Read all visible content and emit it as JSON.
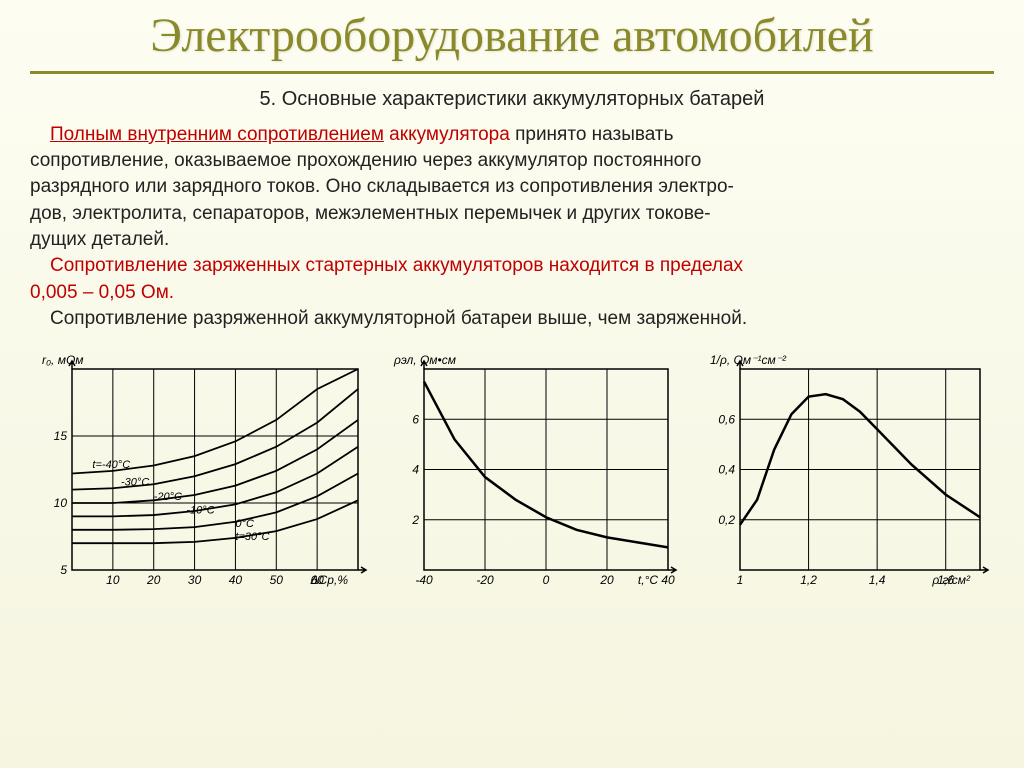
{
  "title": "Электрооборудование автомобилей",
  "subtitle": "5. Основные характеристики аккумуляторных батарей",
  "text": {
    "term": "Полным внутренним сопротивлением",
    "term_tail": " аккумулятора",
    "l1b": " принято называть",
    "l2": " сопротивление, оказываемое прохождению через аккумулятор постоянного",
    "l3": "разрядного или зарядного токов. Оно складывается из сопротивления электро-",
    "l4": "дов, электролита, сепараторов, межэлементных перемычек и других токове-",
    "l5": "дущих деталей.",
    "r1a": "Сопротивление заряженных стартерных аккумуляторов находится в пределах",
    "r1b": "0,005 – 0,05 Ом.",
    "l6": "Сопротивление разряженной аккумуляторной батареи выше, чем заряженной."
  },
  "chart1": {
    "type": "line",
    "ylabel": "r₀, мОм",
    "xlabel": "ΔCр,%",
    "xlim": [
      0,
      70
    ],
    "ylim": [
      5,
      20
    ],
    "yticks": [
      5,
      10,
      15
    ],
    "xticks": [
      10,
      20,
      30,
      40,
      50,
      60
    ],
    "series_labels": [
      "t=-40°C",
      "-30°C",
      "-20°C",
      "-10°C",
      "0°C",
      "t=30°C"
    ],
    "series": [
      [
        [
          0,
          12.2
        ],
        [
          10,
          12.4
        ],
        [
          20,
          12.8
        ],
        [
          30,
          13.5
        ],
        [
          40,
          14.6
        ],
        [
          50,
          16.2
        ],
        [
          60,
          18.5
        ],
        [
          70,
          20
        ]
      ],
      [
        [
          0,
          11.0
        ],
        [
          10,
          11.1
        ],
        [
          20,
          11.4
        ],
        [
          30,
          12.0
        ],
        [
          40,
          12.9
        ],
        [
          50,
          14.2
        ],
        [
          60,
          16.0
        ],
        [
          70,
          18.5
        ]
      ],
      [
        [
          0,
          10.0
        ],
        [
          10,
          10.0
        ],
        [
          20,
          10.2
        ],
        [
          30,
          10.6
        ],
        [
          40,
          11.3
        ],
        [
          50,
          12.4
        ],
        [
          60,
          14.0
        ],
        [
          70,
          16.2
        ]
      ],
      [
        [
          0,
          9.0
        ],
        [
          10,
          9.0
        ],
        [
          20,
          9.1
        ],
        [
          30,
          9.4
        ],
        [
          40,
          9.9
        ],
        [
          50,
          10.8
        ],
        [
          60,
          12.2
        ],
        [
          70,
          14.2
        ]
      ],
      [
        [
          0,
          8.0
        ],
        [
          10,
          8.0
        ],
        [
          20,
          8.05
        ],
        [
          30,
          8.2
        ],
        [
          40,
          8.6
        ],
        [
          50,
          9.3
        ],
        [
          60,
          10.5
        ],
        [
          70,
          12.2
        ]
      ],
      [
        [
          0,
          7.0
        ],
        [
          10,
          7.0
        ],
        [
          20,
          7.0
        ],
        [
          30,
          7.1
        ],
        [
          40,
          7.4
        ],
        [
          50,
          7.9
        ],
        [
          60,
          8.8
        ],
        [
          70,
          10.2
        ]
      ]
    ],
    "line_color": "#000000",
    "grid_color": "#000000",
    "font": 12
  },
  "chart2": {
    "type": "line",
    "ylabel": "ρэл, Ом•см",
    "xlabel": "t,°С",
    "xlim": [
      -40,
      40
    ],
    "ylim": [
      0,
      8
    ],
    "yticks": [
      2,
      4,
      6
    ],
    "xticks": [
      -40,
      -20,
      0,
      20,
      40
    ],
    "series": [
      [
        [
          -40,
          7.5
        ],
        [
          -30,
          5.2
        ],
        [
          -20,
          3.7
        ],
        [
          -10,
          2.8
        ],
        [
          0,
          2.1
        ],
        [
          10,
          1.6
        ],
        [
          20,
          1.3
        ],
        [
          30,
          1.1
        ],
        [
          40,
          0.9
        ]
      ]
    ],
    "line_color": "#000000",
    "grid_color": "#000000",
    "font": 12,
    "line_width": 2.5
  },
  "chart3": {
    "type": "line",
    "ylabel": "1/ρ, Ом⁻¹см⁻²",
    "xlabel": "ρ г/см²",
    "xlim": [
      1.0,
      1.7
    ],
    "ylim": [
      0,
      0.8
    ],
    "yticks": [
      0.2,
      0.4,
      0.6
    ],
    "xticks": [
      1.0,
      1.2,
      1.4,
      1.6
    ],
    "series": [
      [
        [
          1.0,
          0.18
        ],
        [
          1.05,
          0.28
        ],
        [
          1.1,
          0.48
        ],
        [
          1.15,
          0.62
        ],
        [
          1.2,
          0.69
        ],
        [
          1.25,
          0.7
        ],
        [
          1.3,
          0.68
        ],
        [
          1.35,
          0.63
        ],
        [
          1.4,
          0.56
        ],
        [
          1.5,
          0.42
        ],
        [
          1.6,
          0.3
        ],
        [
          1.7,
          0.21
        ]
      ]
    ],
    "line_color": "#000000",
    "grid_color": "#000000",
    "font": 12,
    "line_width": 2.5
  },
  "style": {
    "bg_top": "#fdfdf2",
    "bg_bot": "#f5f5e0",
    "title_color": "#8a8a2a",
    "red": "#c00000"
  }
}
